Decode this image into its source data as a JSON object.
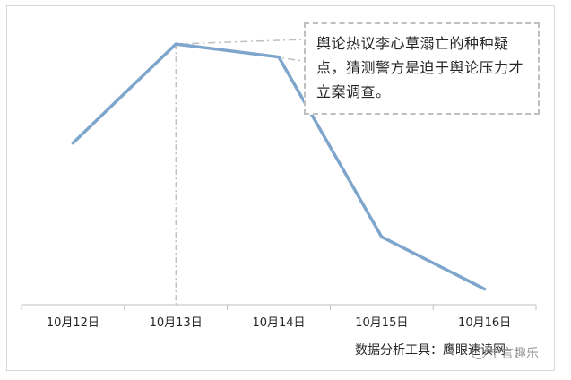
{
  "chart_data": {
    "type": "line",
    "categories": [
      "10月12日",
      "10月13日",
      "10月14日",
      "10月15日",
      "10月16日"
    ],
    "values": [
      62,
      100,
      95,
      26,
      6
    ],
    "ylim": [
      0,
      110
    ],
    "grid": false,
    "annotation": {
      "text": "舆论热议李心草溺亡的种种疑点，猜测警方是迫于舆论压力才立案调查。",
      "target": "10月13日"
    },
    "source_note": "数据分析工具：鹰眼速读网"
  },
  "watermark": "宁言趣乐",
  "colors": {
    "line": "#7ea6cc",
    "axis": "#bfbfbf",
    "annotation_border": "#bfbfbf",
    "drop_line": "#a6a6a6"
  }
}
